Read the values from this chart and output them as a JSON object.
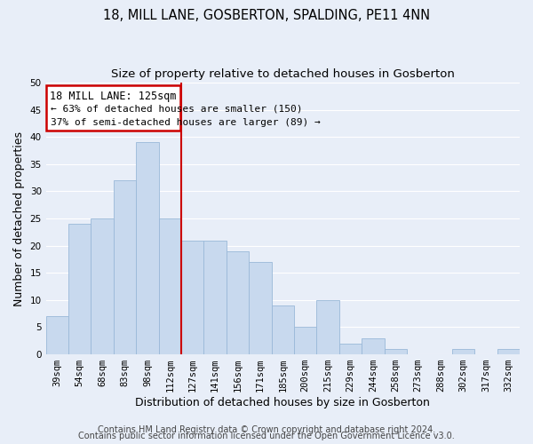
{
  "title": "18, MILL LANE, GOSBERTON, SPALDING, PE11 4NN",
  "subtitle": "Size of property relative to detached houses in Gosberton",
  "xlabel": "Distribution of detached houses by size in Gosberton",
  "ylabel": "Number of detached properties",
  "bar_labels": [
    "39sqm",
    "54sqm",
    "68sqm",
    "83sqm",
    "98sqm",
    "112sqm",
    "127sqm",
    "141sqm",
    "156sqm",
    "171sqm",
    "185sqm",
    "200sqm",
    "215sqm",
    "229sqm",
    "244sqm",
    "258sqm",
    "273sqm",
    "288sqm",
    "302sqm",
    "317sqm",
    "332sqm"
  ],
  "bar_values": [
    7,
    24,
    25,
    32,
    39,
    25,
    21,
    21,
    19,
    17,
    9,
    5,
    10,
    2,
    3,
    1,
    0,
    0,
    1,
    0,
    1
  ],
  "bar_color": "#c8d9ee",
  "bar_edge_color": "#9ab8d8",
  "vline_color": "#cc0000",
  "ylim": [
    0,
    50
  ],
  "yticks": [
    0,
    5,
    10,
    15,
    20,
    25,
    30,
    35,
    40,
    45,
    50
  ],
  "annotation_title": "18 MILL LANE: 125sqm",
  "annotation_line1": "← 63% of detached houses are smaller (150)",
  "annotation_line2": "37% of semi-detached houses are larger (89) →",
  "annotation_box_color": "#ffffff",
  "annotation_box_edge": "#cc0000",
  "footer_line1": "Contains HM Land Registry data © Crown copyright and database right 2024.",
  "footer_line2": "Contains public sector information licensed under the Open Government Licence v3.0.",
  "background_color": "#e8eef8",
  "plot_bg_color": "#e8eef8",
  "grid_color": "#ffffff",
  "title_fontsize": 10.5,
  "subtitle_fontsize": 9.5,
  "axis_label_fontsize": 9,
  "tick_fontsize": 7.5,
  "annotation_title_fontsize": 8.5,
  "annotation_text_fontsize": 8,
  "footer_fontsize": 7
}
